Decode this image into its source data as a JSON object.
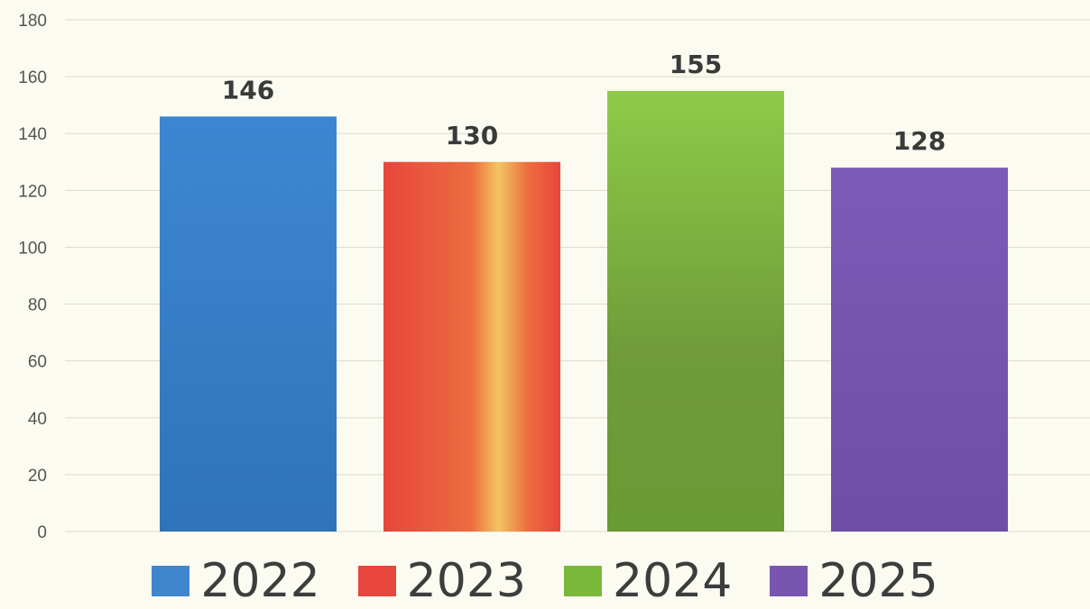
{
  "title_fragment": "",
  "chart_data": {
    "type": "bar",
    "categories": [
      "2022",
      "2023",
      "2024",
      "2025"
    ],
    "values": [
      146,
      130,
      155,
      128
    ],
    "ylim": [
      0,
      180
    ],
    "yticks": [
      "0",
      "20",
      "40",
      "60",
      "80",
      "100",
      "120",
      "140",
      "160",
      "180"
    ],
    "data_labels": [
      "146",
      "130",
      "155",
      "128"
    ],
    "grid": true,
    "legend_position": "bottom",
    "series_colors": [
      "#3f86cc",
      "#e8453c",
      "#7bb83a",
      "#7755b0"
    ]
  }
}
